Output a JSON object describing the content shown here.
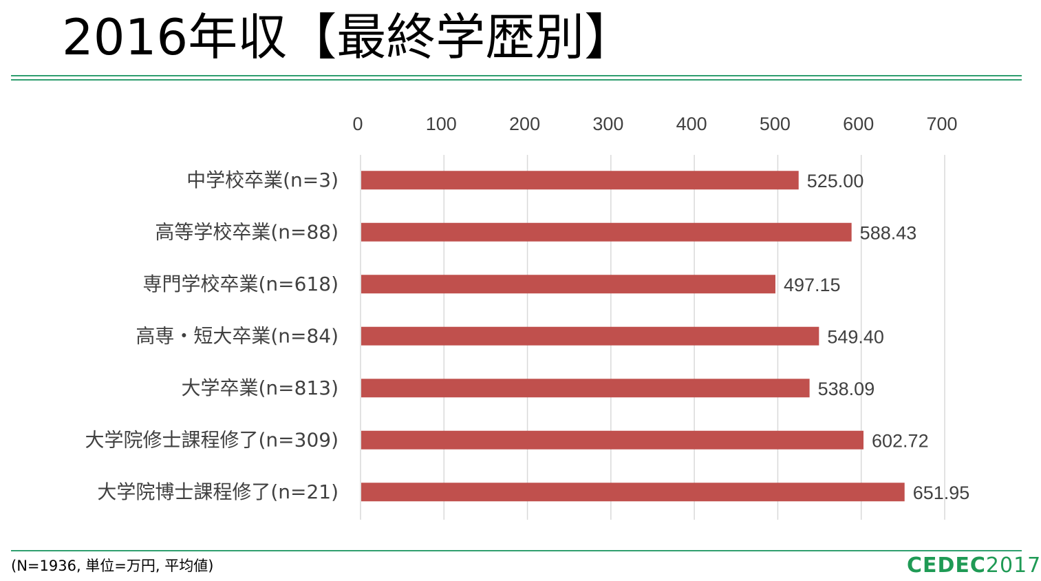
{
  "title": "2016年収【最終学歴別】",
  "footnote": "(N=1936, 単位=万円, 平均値)",
  "logo": {
    "word": "CEDEC",
    "year": "2017"
  },
  "colors": {
    "accent": "#2e9e6e",
    "bar": "#c0504d",
    "grid": "#d9d9d9",
    "text": "#404040"
  },
  "chart_data": {
    "type": "bar",
    "orientation": "horizontal",
    "title": "",
    "xlabel": "",
    "ylabel": "",
    "xlim": [
      0,
      700
    ],
    "x_ticks": [
      0,
      100,
      200,
      300,
      400,
      500,
      600,
      700
    ],
    "x_axis_position": "top",
    "grid": true,
    "legend": "none",
    "categories": [
      "中学校卒業(n=3)",
      "高等学校卒業(n=88)",
      "専門学校卒業(n=618)",
      "高専・短大卒業(n=84)",
      "大学卒業(n=813)",
      "大学院修士課程修了(n=309)",
      "大学院博士課程修了(n=21)"
    ],
    "values": [
      525.0,
      588.43,
      497.15,
      549.4,
      538.09,
      602.72,
      651.95
    ],
    "data_labels": [
      "525.00",
      "588.43",
      "497.15",
      "549.40",
      "538.09",
      "602.72",
      "651.95"
    ]
  }
}
